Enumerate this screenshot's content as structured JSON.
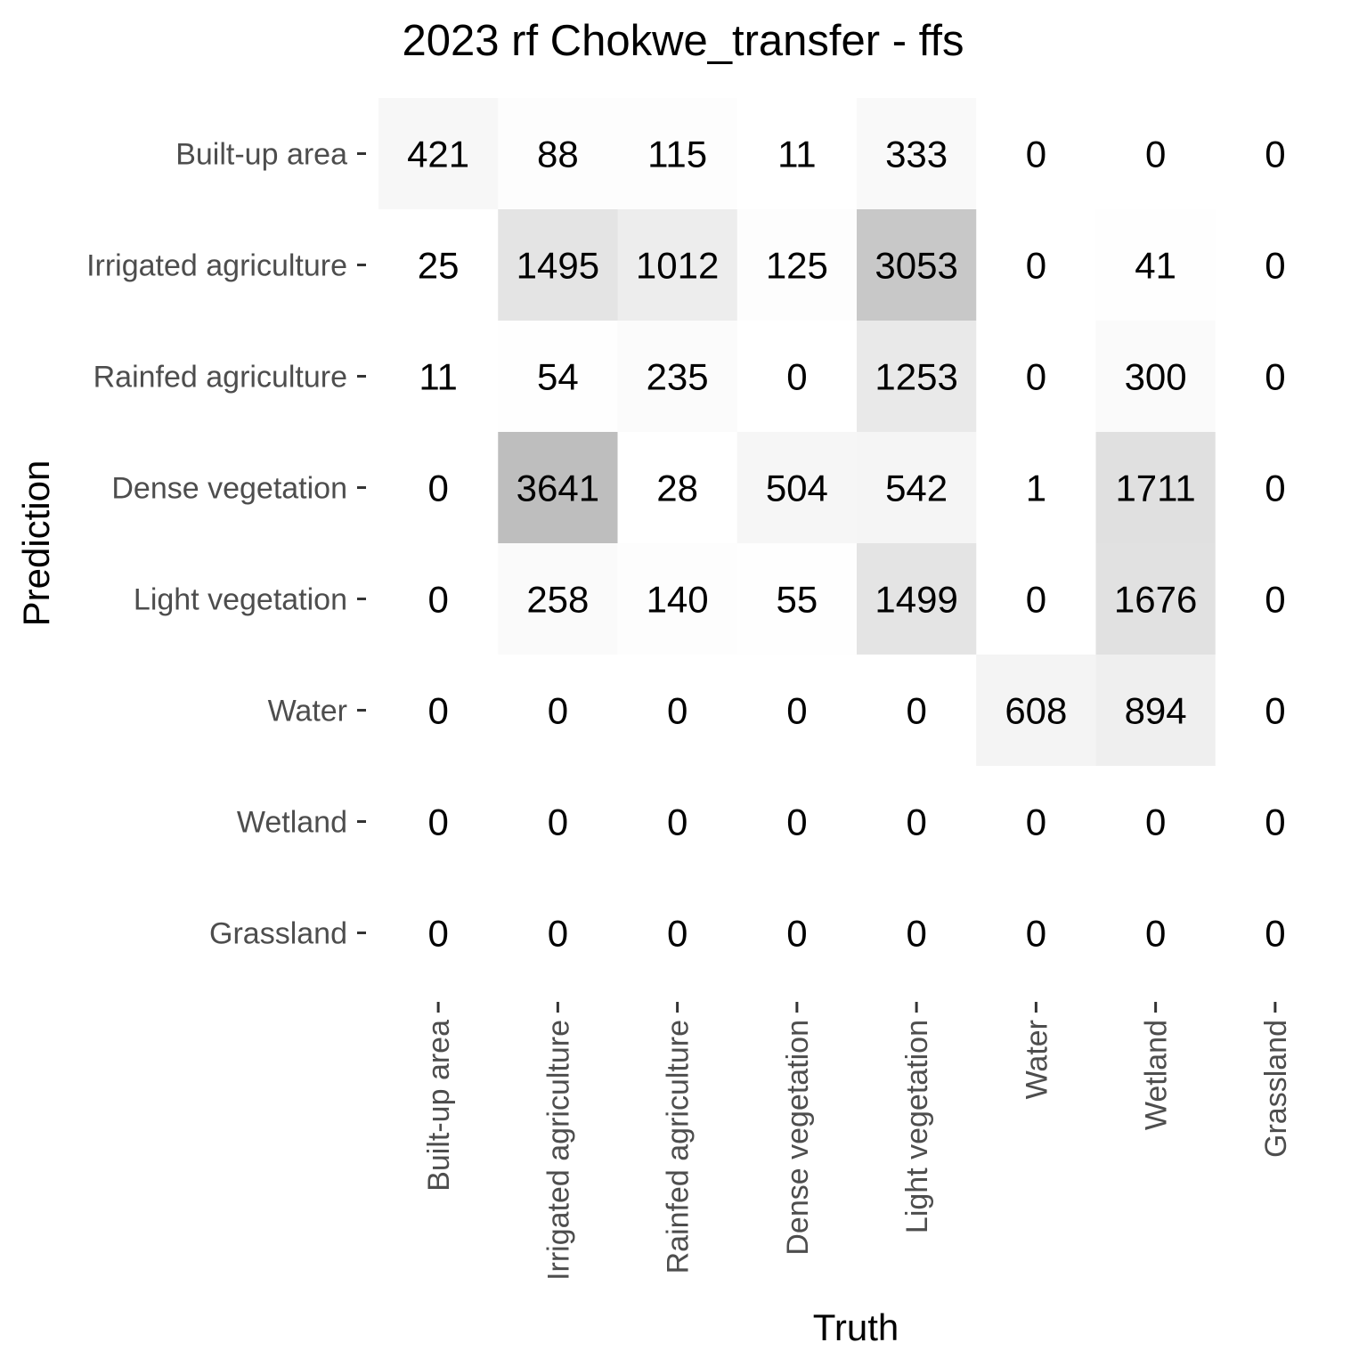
{
  "chart_data": {
    "type": "heatmap",
    "title": "2023 rf Chokwe_transfer - ffs",
    "xlabel": "Truth",
    "ylabel": "Prediction",
    "x_categories": [
      "Built-up area",
      "Irrigated agriculture",
      "Rainfed agriculture",
      "Dense vegetation",
      "Light vegetation",
      "Water",
      "Wetland",
      "Grassland"
    ],
    "y_categories": [
      "Built-up area",
      "Irrigated agriculture",
      "Rainfed agriculture",
      "Dense vegetation",
      "Light vegetation",
      "Water",
      "Wetland",
      "Grassland"
    ],
    "values": [
      [
        421,
        88,
        115,
        11,
        333,
        0,
        0,
        0
      ],
      [
        25,
        1495,
        1012,
        125,
        3053,
        0,
        41,
        0
      ],
      [
        11,
        54,
        235,
        0,
        1253,
        0,
        300,
        0
      ],
      [
        0,
        3641,
        28,
        504,
        542,
        1,
        1711,
        0
      ],
      [
        0,
        258,
        140,
        55,
        1499,
        0,
        1676,
        0
      ],
      [
        0,
        0,
        0,
        0,
        0,
        608,
        894,
        0
      ],
      [
        0,
        0,
        0,
        0,
        0,
        0,
        0,
        0
      ],
      [
        0,
        0,
        0,
        0,
        0,
        0,
        0,
        0
      ]
    ],
    "color_low": "#ffffff",
    "color_high": "#bebebe",
    "grid": false,
    "legend": "none"
  }
}
